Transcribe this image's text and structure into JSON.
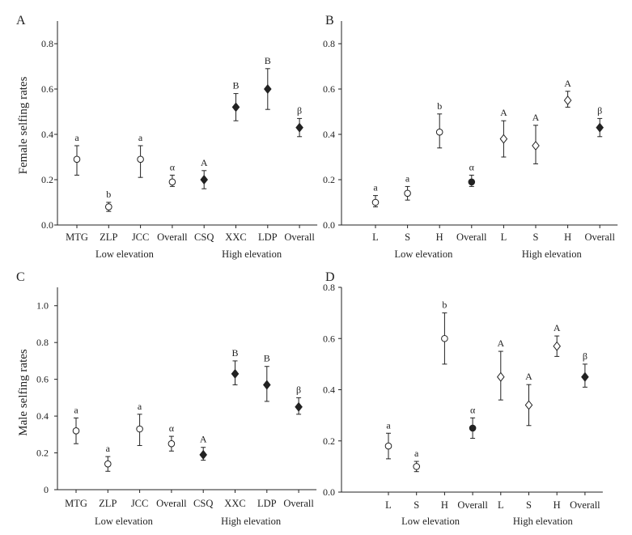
{
  "chart_data": [
    {
      "type": "scatter",
      "panel": "A",
      "ylabel": "Female selfing rates",
      "ylim": [
        0,
        0.9
      ],
      "yticks": [
        0.0,
        0.2,
        0.4,
        0.6,
        0.8
      ],
      "ytick_labels": [
        "0.0",
        "0.2",
        "0.4",
        "0.6",
        "0.8"
      ],
      "categories": [
        "MTG",
        "ZLP",
        "JCC",
        "Overall",
        "CSQ",
        "XXC",
        "LDP",
        "Overall"
      ],
      "groups": [
        {
          "label": "Low elevation",
          "span": [
            0,
            3
          ]
        },
        {
          "label": "High elevation",
          "span": [
            4,
            7
          ]
        }
      ],
      "points": [
        {
          "value": 0.29,
          "lower": 0.22,
          "upper": 0.35,
          "marker": "open-circle",
          "sig": "a"
        },
        {
          "value": 0.08,
          "lower": 0.06,
          "upper": 0.1,
          "marker": "open-circle",
          "sig": "b"
        },
        {
          "value": 0.29,
          "lower": 0.21,
          "upper": 0.35,
          "marker": "open-circle",
          "sig": "a"
        },
        {
          "value": 0.19,
          "lower": 0.17,
          "upper": 0.22,
          "marker": "open-circle",
          "sig": "α"
        },
        {
          "value": 0.2,
          "lower": 0.16,
          "upper": 0.24,
          "marker": "filled-diamond",
          "sig": "A"
        },
        {
          "value": 0.52,
          "lower": 0.46,
          "upper": 0.58,
          "marker": "filled-diamond",
          "sig": "B"
        },
        {
          "value": 0.6,
          "lower": 0.51,
          "upper": 0.69,
          "marker": "filled-diamond",
          "sig": "B"
        },
        {
          "value": 0.43,
          "lower": 0.39,
          "upper": 0.47,
          "marker": "filled-diamond",
          "sig": "β"
        }
      ]
    },
    {
      "type": "scatter",
      "panel": "B",
      "ylabel": "",
      "ylim": [
        0,
        0.9
      ],
      "yticks": [
        0.0,
        0.2,
        0.4,
        0.6,
        0.8
      ],
      "ytick_labels": [
        "0.0",
        "0.2",
        "0.4",
        "0.6",
        "0.8"
      ],
      "categories": [
        "L",
        "S",
        "H",
        "Overall",
        "L",
        "S",
        "H",
        "Overall"
      ],
      "groups": [
        {
          "label": "Low elevation",
          "span": [
            0,
            3
          ]
        },
        {
          "label": "High elevation",
          "span": [
            4,
            7
          ]
        }
      ],
      "points": [
        {
          "value": 0.1,
          "lower": 0.08,
          "upper": 0.13,
          "marker": "open-circle",
          "sig": "a"
        },
        {
          "value": 0.14,
          "lower": 0.11,
          "upper": 0.17,
          "marker": "open-circle",
          "sig": "a"
        },
        {
          "value": 0.41,
          "lower": 0.34,
          "upper": 0.49,
          "marker": "open-circle",
          "sig": "b"
        },
        {
          "value": 0.19,
          "lower": 0.17,
          "upper": 0.22,
          "marker": "filled-circle",
          "sig": "α"
        },
        {
          "value": 0.38,
          "lower": 0.3,
          "upper": 0.46,
          "marker": "open-diamond",
          "sig": "A"
        },
        {
          "value": 0.35,
          "lower": 0.27,
          "upper": 0.44,
          "marker": "open-diamond",
          "sig": "A"
        },
        {
          "value": 0.55,
          "lower": 0.52,
          "upper": 0.59,
          "marker": "open-diamond",
          "sig": "A"
        },
        {
          "value": 0.43,
          "lower": 0.39,
          "upper": 0.47,
          "marker": "filled-diamond",
          "sig": "β"
        }
      ]
    },
    {
      "type": "scatter",
      "panel": "C",
      "ylabel": "Male selfing rates",
      "ylim": [
        0,
        1.1
      ],
      "yticks": [
        0.0,
        0.2,
        0.4,
        0.6,
        0.8,
        1.0
      ],
      "ytick_labels": [
        "0",
        "0.2",
        "0.4",
        "0.6",
        "0.8",
        "1.0"
      ],
      "categories": [
        "MTG",
        "ZLP",
        "JCC",
        "Overall",
        "CSQ",
        "XXC",
        "LDP",
        "Overall"
      ],
      "groups": [
        {
          "label": "Low elevation",
          "span": [
            0,
            3
          ]
        },
        {
          "label": "High elevation",
          "span": [
            4,
            7
          ]
        }
      ],
      "points": [
        {
          "value": 0.32,
          "lower": 0.25,
          "upper": 0.39,
          "marker": "open-circle",
          "sig": "a"
        },
        {
          "value": 0.14,
          "lower": 0.1,
          "upper": 0.18,
          "marker": "open-circle",
          "sig": "a"
        },
        {
          "value": 0.33,
          "lower": 0.24,
          "upper": 0.41,
          "marker": "open-circle",
          "sig": "a"
        },
        {
          "value": 0.25,
          "lower": 0.21,
          "upper": 0.29,
          "marker": "open-circle",
          "sig": "α"
        },
        {
          "value": 0.19,
          "lower": 0.16,
          "upper": 0.23,
          "marker": "filled-diamond",
          "sig": "A"
        },
        {
          "value": 0.63,
          "lower": 0.57,
          "upper": 0.7,
          "marker": "filled-diamond",
          "sig": "B"
        },
        {
          "value": 0.57,
          "lower": 0.48,
          "upper": 0.67,
          "marker": "filled-diamond",
          "sig": "B"
        },
        {
          "value": 0.45,
          "lower": 0.41,
          "upper": 0.5,
          "marker": "filled-diamond",
          "sig": "β"
        }
      ]
    },
    {
      "type": "scatter",
      "panel": "D",
      "ylabel": "",
      "ylim": [
        0,
        0.8
      ],
      "yticks": [
        0.0,
        0.2,
        0.4,
        0.6,
        0.8
      ],
      "ytick_labels": [
        "0.0",
        "0.2",
        "0.4",
        "0.6",
        "0.8"
      ],
      "categories": [
        "L",
        "S",
        "H",
        "Overall",
        "L",
        "S",
        "H",
        "Overall"
      ],
      "groups": [
        {
          "label": "Low elevation",
          "span": [
            0,
            3
          ]
        },
        {
          "label": "High elevation",
          "span": [
            4,
            7
          ]
        }
      ],
      "points": [
        {
          "value": 0.18,
          "lower": 0.13,
          "upper": 0.23,
          "marker": "open-circle",
          "sig": "a"
        },
        {
          "value": 0.1,
          "lower": 0.08,
          "upper": 0.12,
          "marker": "open-circle",
          "sig": "a"
        },
        {
          "value": 0.6,
          "lower": 0.5,
          "upper": 0.7,
          "marker": "open-circle",
          "sig": "b"
        },
        {
          "value": 0.25,
          "lower": 0.21,
          "upper": 0.29,
          "marker": "filled-circle",
          "sig": "α"
        },
        {
          "value": 0.45,
          "lower": 0.36,
          "upper": 0.55,
          "marker": "open-diamond",
          "sig": "A"
        },
        {
          "value": 0.34,
          "lower": 0.26,
          "upper": 0.42,
          "marker": "open-diamond",
          "sig": "A"
        },
        {
          "value": 0.57,
          "lower": 0.53,
          "upper": 0.61,
          "marker": "open-diamond",
          "sig": "A"
        },
        {
          "value": 0.45,
          "lower": 0.41,
          "upper": 0.5,
          "marker": "filled-diamond",
          "sig": "β"
        }
      ]
    }
  ],
  "colors": {
    "ink": "#222222",
    "open_fill": "#ffffff"
  }
}
